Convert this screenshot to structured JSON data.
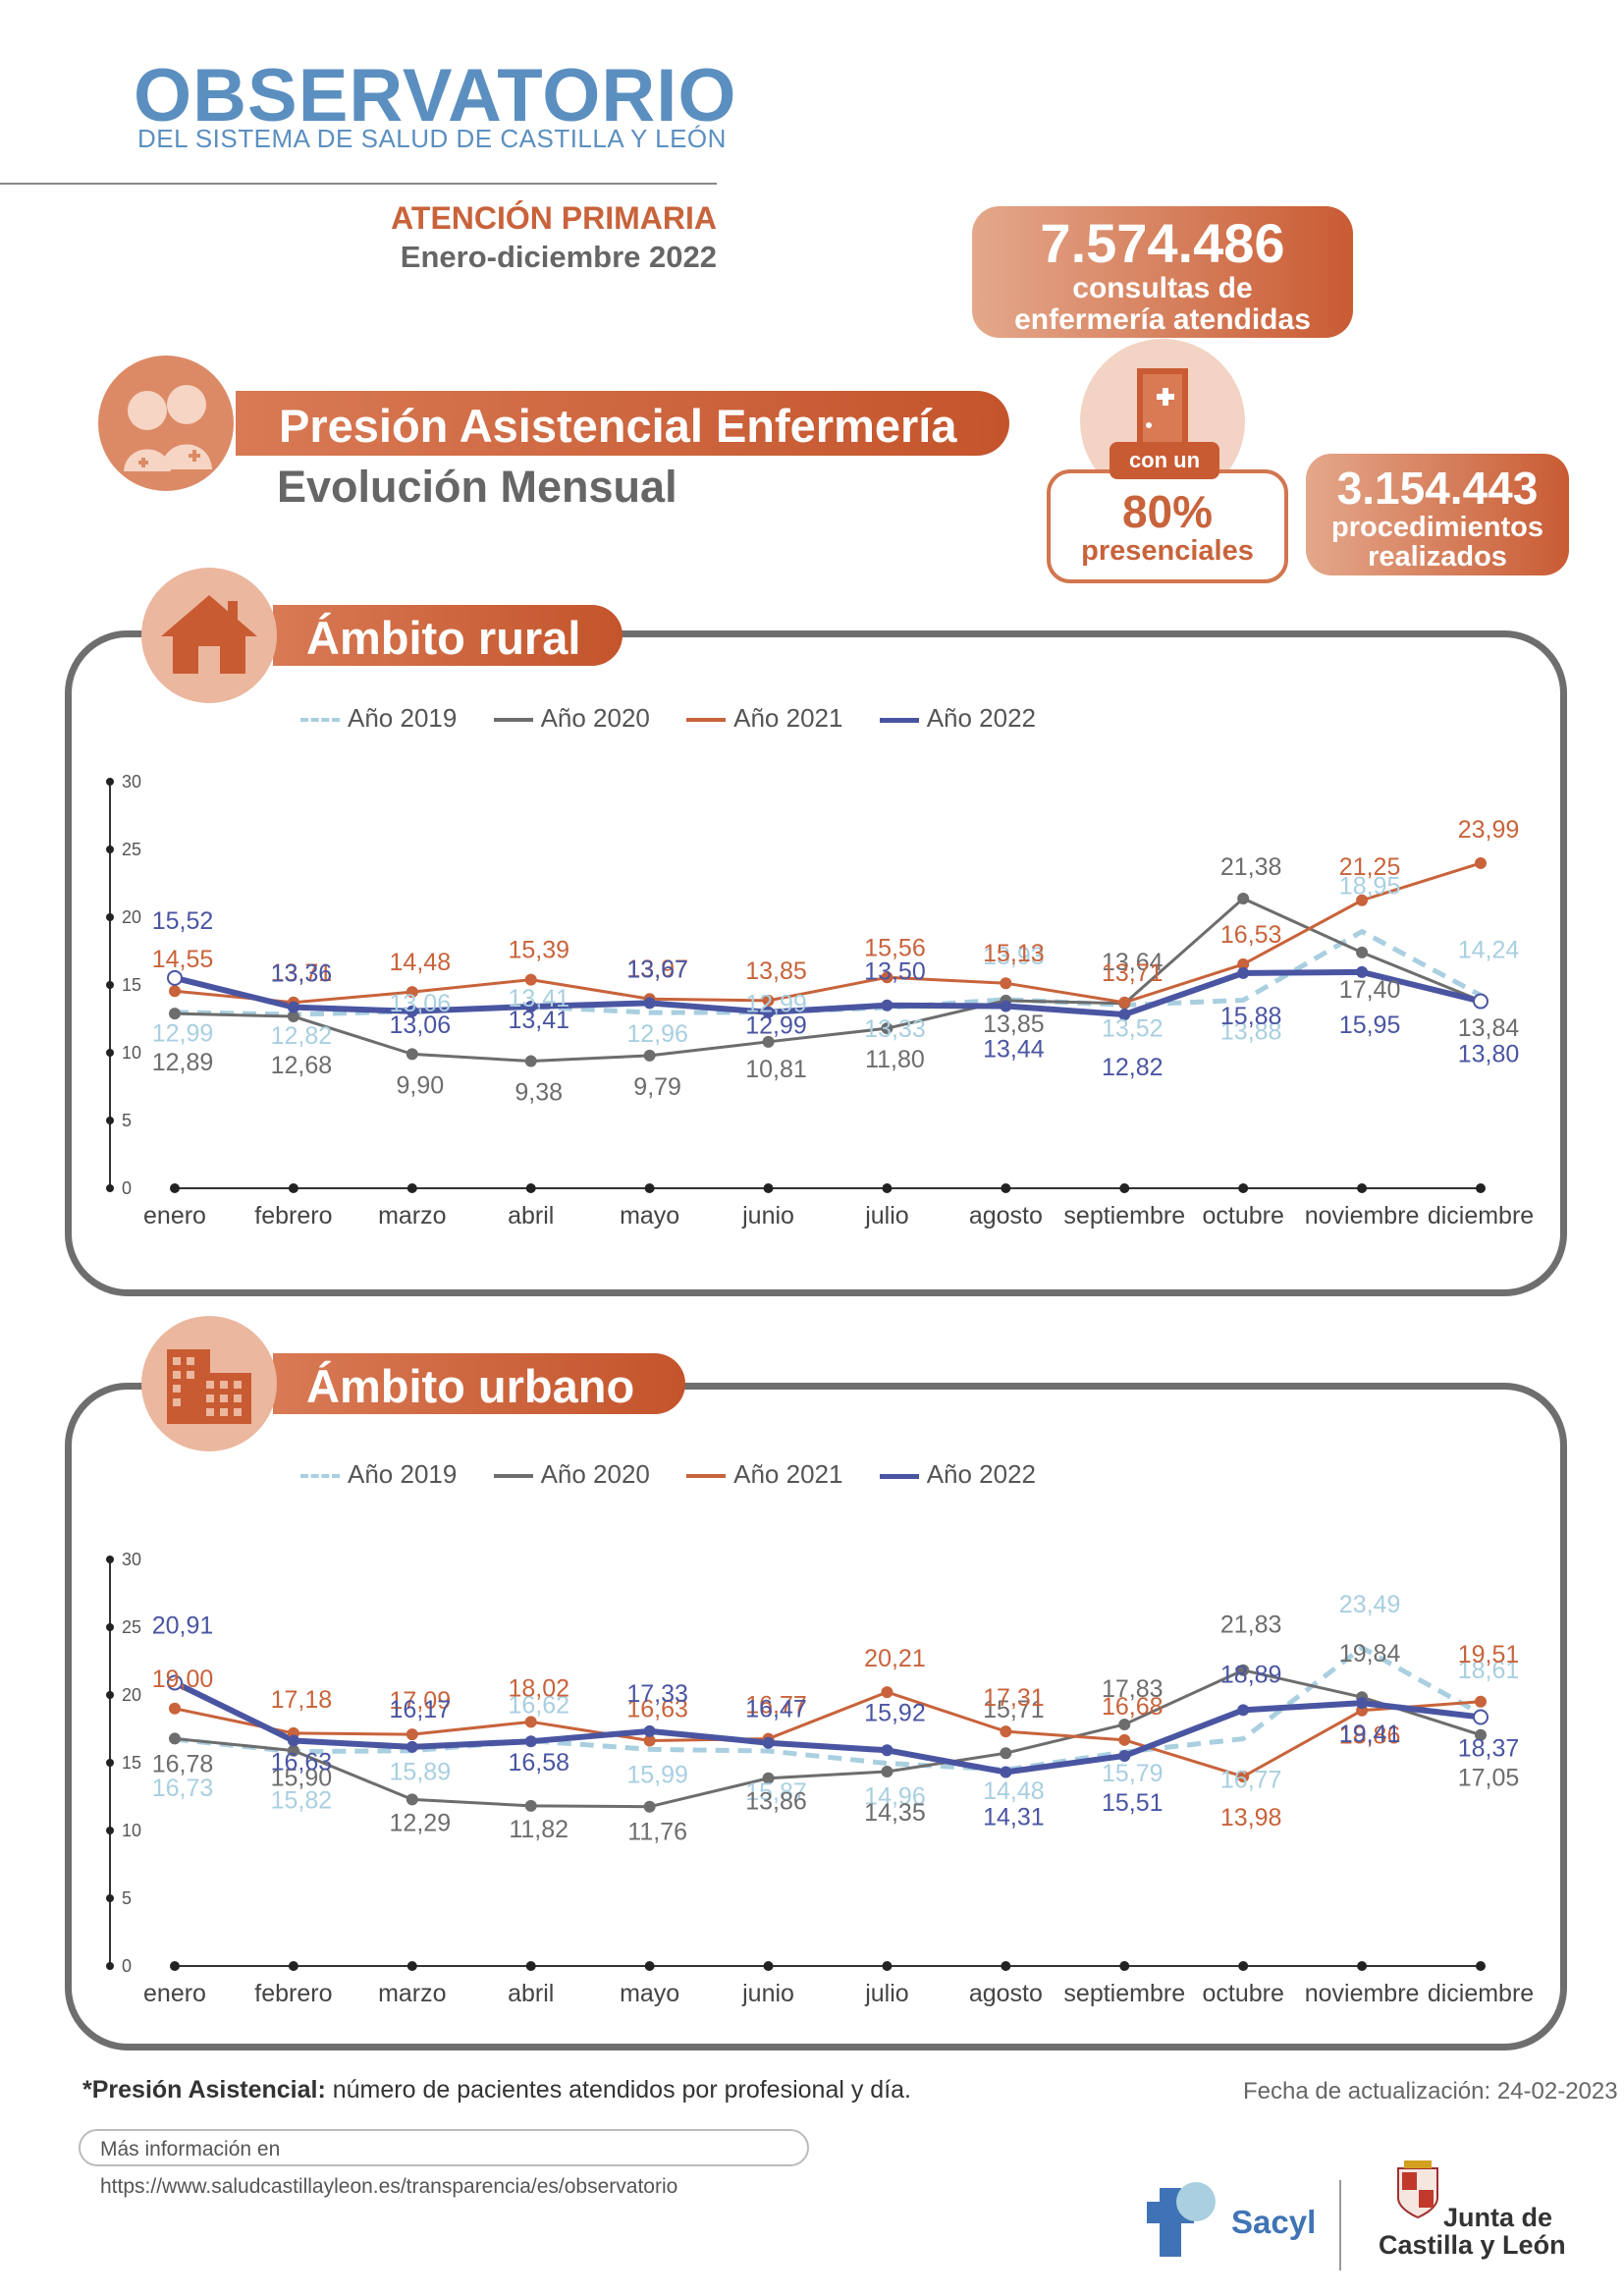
{
  "header": {
    "logo_text": "OBSERVATORIO",
    "logo_subtitle": "DEL SISTEMA DE SALUD DE CASTILLA Y LEÓN",
    "section": "ATENCIÓN PRIMARIA",
    "period": "Enero-diciembre 2022"
  },
  "kpis": {
    "consultas_value": "7.574.486",
    "consultas_label_1": "consultas de",
    "consultas_label_2": "enfermería atendidas",
    "presencial_tag": "con un",
    "presencial_value": "80%",
    "presencial_label": "presenciales",
    "procedimientos_value": "3.154.443",
    "procedimientos_label_1": "procedimientos",
    "procedimientos_label_2": "realizados"
  },
  "title": {
    "main": "Presión Asistencial Enfermería",
    "sub": "Evolución Mensual"
  },
  "legend": {
    "s2019": "Año 2019",
    "s2020": "Año 2020",
    "s2021": "Año 2021",
    "s2022": "Año 2022"
  },
  "colors": {
    "s2019": "#a9cfe0",
    "s2020": "#6d6d6d",
    "s2021": "#c8633b",
    "s2022": "#4a55a2",
    "accent": "#c8633b"
  },
  "chart_data": [
    {
      "type": "line",
      "title": "Ámbito rural",
      "categories": [
        "enero",
        "febrero",
        "marzo",
        "abril",
        "mayo",
        "junio",
        "julio",
        "agosto",
        "septiembre",
        "octubre",
        "noviembre",
        "diciembre"
      ],
      "ylim": [
        0,
        30
      ],
      "yticks": [
        "0",
        "5",
        "10",
        "15",
        "20",
        "25",
        "30"
      ],
      "grid": false,
      "legend_position": "top",
      "series": [
        {
          "key": "s2019",
          "name": "Año 2019",
          "values": [
            12.99,
            12.82,
            13.06,
            13.41,
            12.96,
            12.99,
            13.33,
            13.93,
            13.52,
            13.88,
            18.95,
            14.24
          ],
          "labels": [
            "12,99",
            "12,82",
            "13,06",
            "13,41",
            "12,96",
            "12,99",
            "13,33",
            "13,93",
            "13,52",
            "13,88",
            "18,95",
            "14,24"
          ]
        },
        {
          "key": "s2020",
          "name": "Año 2020",
          "values": [
            12.89,
            12.68,
            9.9,
            9.38,
            9.79,
            10.81,
            11.8,
            13.85,
            13.64,
            21.38,
            17.4,
            13.84
          ],
          "labels": [
            "12,89",
            "12,68",
            "9,90",
            "9,38",
            "9,79",
            "10,81",
            "11,80",
            "13,85",
            "13,64",
            "21,38",
            "17,40",
            "13,84"
          ]
        },
        {
          "key": "s2021",
          "name": "Año 2021",
          "values": [
            14.55,
            13.71,
            14.48,
            15.39,
            13.97,
            13.85,
            15.56,
            15.13,
            13.71,
            16.53,
            21.25,
            23.99
          ],
          "labels": [
            "14,55",
            "13,71",
            "14,48",
            "15,39",
            "13,97",
            "13,85",
            "15,56",
            "15,13",
            "13,71",
            "16,53",
            "21,25",
            "23,99"
          ]
        },
        {
          "key": "s2022",
          "name": "Año 2022",
          "values": [
            15.52,
            13.36,
            13.06,
            13.41,
            13.67,
            12.99,
            13.5,
            13.44,
            12.82,
            15.88,
            15.95,
            13.8
          ],
          "labels": [
            "15,52",
            "13,36",
            "13,06",
            "13,41",
            "13,67",
            "12,99",
            "13,50",
            "13,44",
            "12,82",
            "15,88",
            "15,95",
            "13,80"
          ]
        }
      ]
    },
    {
      "type": "line",
      "title": "Ámbito urbano",
      "categories": [
        "enero",
        "febrero",
        "marzo",
        "abril",
        "mayo",
        "junio",
        "julio",
        "agosto",
        "septiembre",
        "octubre",
        "noviembre",
        "diciembre"
      ],
      "ylim": [
        0,
        30
      ],
      "yticks": [
        "0",
        "5",
        "10",
        "15",
        "20",
        "25",
        "30"
      ],
      "grid": false,
      "legend_position": "top",
      "series": [
        {
          "key": "s2019",
          "name": "Año 2019",
          "values": [
            16.73,
            15.82,
            15.89,
            16.62,
            15.99,
            15.87,
            14.96,
            14.48,
            15.79,
            16.77,
            23.49,
            18.61
          ],
          "labels": [
            "16,73",
            "15,82",
            "15,89",
            "16,62",
            "15,99",
            "15,87",
            "14,96",
            "14,48",
            "15,79",
            "16,77",
            "23,49",
            "18,61"
          ]
        },
        {
          "key": "s2020",
          "name": "Año 2020",
          "values": [
            16.78,
            15.9,
            12.29,
            11.82,
            11.76,
            13.86,
            14.35,
            15.71,
            17.83,
            21.83,
            19.84,
            17.05
          ],
          "labels": [
            "16,78",
            "15,90",
            "12,29",
            "11,82",
            "11,76",
            "13,86",
            "14,35",
            "15,71",
            "17,83",
            "21,83",
            "19,84",
            "17,05"
          ]
        },
        {
          "key": "s2021",
          "name": "Año 2021",
          "values": [
            19.0,
            17.18,
            17.09,
            18.02,
            16.63,
            16.77,
            20.21,
            17.31,
            16.68,
            13.98,
            18.86,
            19.51
          ],
          "labels": [
            "19,00",
            "17,18",
            "17,09",
            "18,02",
            "16,63",
            "16,77",
            "20,21",
            "17,31",
            "16,68",
            "13,98",
            "18,86",
            "19,51"
          ]
        },
        {
          "key": "s2022",
          "name": "Año 2022",
          "values": [
            20.91,
            16.63,
            16.17,
            16.58,
            17.33,
            16.47,
            15.92,
            14.31,
            15.51,
            18.89,
            19.41,
            18.37
          ],
          "labels": [
            "20,91",
            "16,63",
            "16,17",
            "16,58",
            "17,33",
            "16,47",
            "15,92",
            "14,31",
            "15,51",
            "18,89",
            "19,41",
            "18,37"
          ]
        }
      ]
    }
  ],
  "footer": {
    "note_bold": "*Presión Asistencial:",
    "note_text": " número de pacientes atendidos por profesional y día.",
    "update": "Fecha de actualización: 24-02-2023",
    "more_info": "Más información en https://www.saludcastillayleon.es/transparencia/es/observatorio",
    "sacyl": "Sacyl",
    "junta_1": "Junta de",
    "junta_2": "Castilla y León"
  }
}
